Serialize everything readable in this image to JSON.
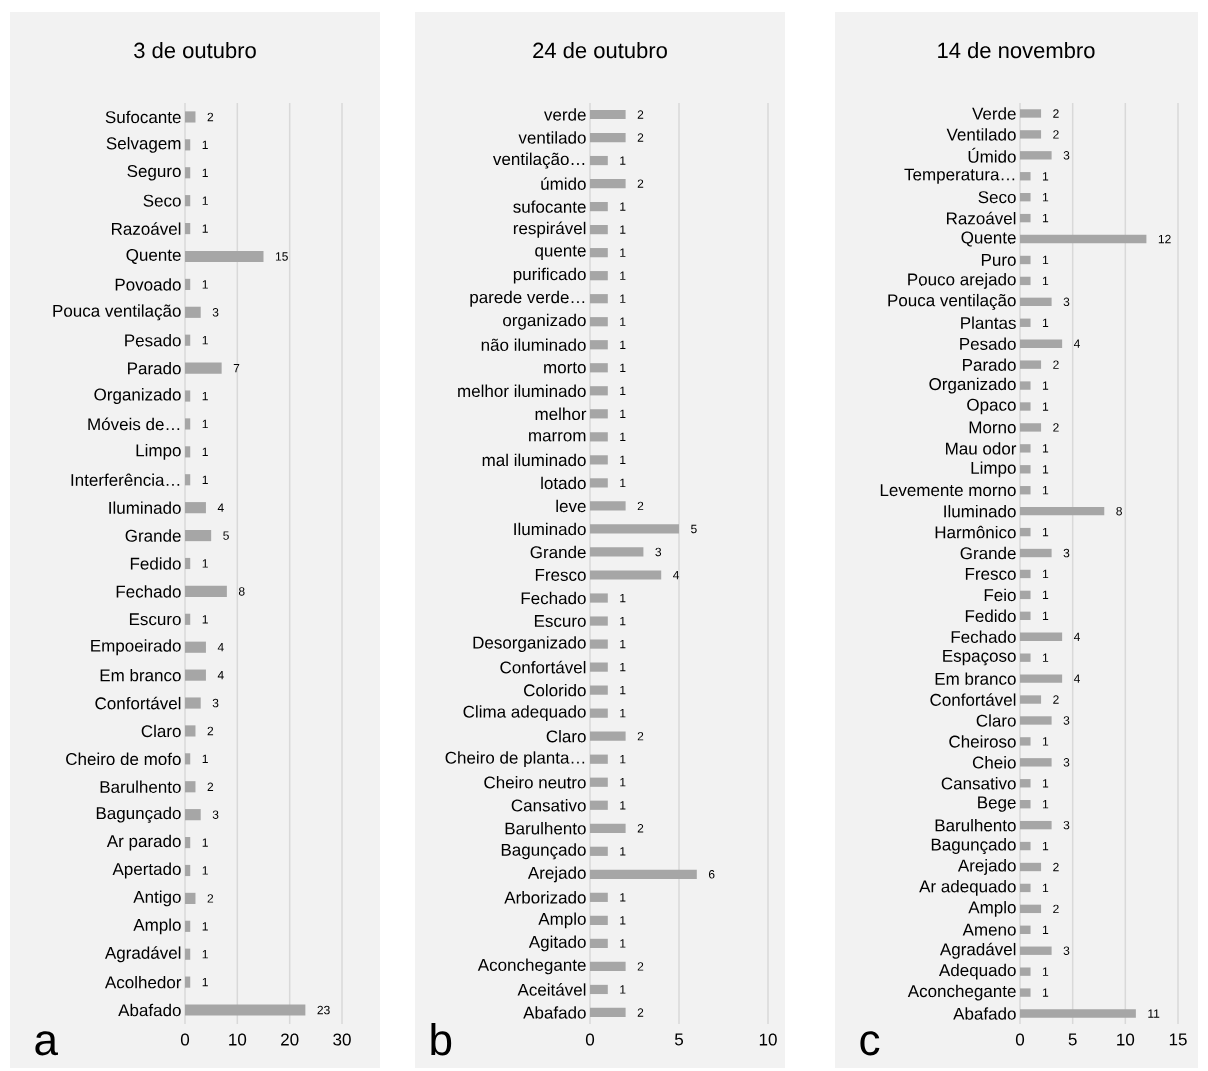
{
  "chart_data": [
    {
      "type": "bar",
      "orientation": "horizontal",
      "title": "3 de outubro",
      "color": "#a6a6a6",
      "grid": "x",
      "data_labels": true,
      "xlim": [
        0,
        30
      ],
      "xticks": [
        0,
        10,
        20,
        30
      ],
      "annotations": [
        "a"
      ],
      "categories": [
        "Sufocante",
        "Selvagem",
        "Seguro",
        "Seco",
        "Razoável",
        "Quente",
        "Povoado",
        "Pouca ventilação",
        "Pesado",
        "Parado",
        "Organizado",
        "Móveis de…",
        "Limpo",
        "Interferência…",
        "Iluminado",
        "Grande",
        "Fedido",
        "Fechado",
        "Escuro",
        "Empoeirado",
        "Em branco",
        "Confortável",
        "Claro",
        "Cheiro de mofo",
        "Barulhento",
        "Bagunçado",
        "Ar parado",
        "Apertado",
        "Antigo",
        "Amplo",
        "Agradável",
        "Acolhedor",
        "Abafado"
      ],
      "values": [
        2,
        1,
        1,
        1,
        1,
        15,
        1,
        3,
        1,
        7,
        1,
        1,
        1,
        1,
        4,
        5,
        1,
        8,
        1,
        4,
        4,
        3,
        2,
        1,
        2,
        3,
        1,
        1,
        2,
        1,
        1,
        1,
        23
      ]
    },
    {
      "type": "bar",
      "orientation": "horizontal",
      "title": "24 de outubro",
      "color": "#a6a6a6",
      "grid": "x",
      "data_labels": true,
      "xlim": [
        0,
        10
      ],
      "xticks": [
        0,
        5,
        10
      ],
      "annotations": [
        "b"
      ],
      "categories": [
        "verde",
        "ventilado",
        "ventilação…",
        "úmido",
        "sufocante",
        "respirável",
        "quente",
        "purificado",
        "parede verde…",
        "organizado",
        "não iluminado",
        "morto",
        "melhor iluminado",
        "melhor",
        "marrom",
        "mal iluminado",
        "lotado",
        "leve",
        "Iluminado",
        "Grande",
        "Fresco",
        "Fechado",
        "Escuro",
        "Desorganizado",
        "Confortável",
        "Colorido",
        "Clima adequado",
        "Claro",
        "Cheiro de planta…",
        "Cheiro neutro",
        "Cansativo",
        "Barulhento",
        "Bagunçado",
        "Arejado",
        "Arborizado",
        "Amplo",
        "Agitado",
        "Aconchegante",
        "Aceitável",
        "Abafado"
      ],
      "values": [
        2,
        2,
        1,
        2,
        1,
        1,
        1,
        1,
        1,
        1,
        1,
        1,
        1,
        1,
        1,
        1,
        1,
        2,
        5,
        3,
        4,
        1,
        1,
        1,
        1,
        1,
        1,
        2,
        1,
        1,
        1,
        2,
        1,
        6,
        1,
        1,
        1,
        2,
        1,
        2
      ]
    },
    {
      "type": "bar",
      "orientation": "horizontal",
      "title": "14 de novembro",
      "color": "#a6a6a6",
      "grid": "x",
      "data_labels": true,
      "xlim": [
        0,
        15
      ],
      "xticks": [
        0,
        5,
        10,
        15
      ],
      "annotations": [
        "c"
      ],
      "categories": [
        "Verde",
        "Ventilado",
        "Úmido",
        "Temperatura…",
        "Seco",
        "Razoável",
        "Quente",
        "Puro",
        "Pouco arejado",
        "Pouca ventilação",
        "Plantas",
        "Pesado",
        "Parado",
        "Organizado",
        "Opaco",
        "Morno",
        "Mau odor",
        "Limpo",
        "Levemente morno",
        "Iluminado",
        "Harmônico",
        "Grande",
        "Fresco",
        "Feio",
        "Fedido",
        "Fechado",
        "Espaçoso",
        "Em branco",
        "Confortável",
        "Claro",
        "Cheiroso",
        "Cheio",
        "Cansativo",
        "Bege",
        "Barulhento",
        "Bagunçado",
        "Arejado",
        "Ar adequado",
        "Amplo",
        "Ameno",
        "Agradável",
        "Adequado",
        "Aconchegante",
        "Abafado"
      ],
      "values": [
        2,
        2,
        3,
        1,
        1,
        1,
        12,
        1,
        1,
        3,
        1,
        4,
        2,
        1,
        1,
        2,
        1,
        1,
        1,
        8,
        1,
        3,
        1,
        1,
        1,
        4,
        1,
        4,
        2,
        3,
        1,
        3,
        1,
        1,
        3,
        1,
        2,
        1,
        2,
        1,
        3,
        1,
        1,
        11
      ]
    }
  ]
}
